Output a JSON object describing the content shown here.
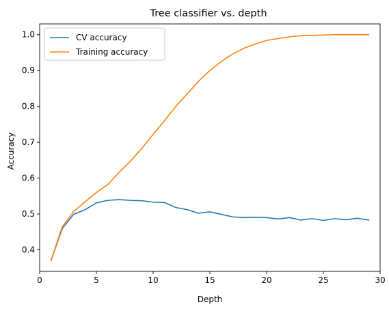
{
  "chart_data": {
    "type": "line",
    "title": "Tree classifier vs. depth",
    "xlabel": "Depth",
    "ylabel": "Accuracy",
    "xlim": [
      0,
      30
    ],
    "ylim": [
      0.34,
      1.03
    ],
    "xticks": [
      0,
      5,
      10,
      15,
      20,
      25,
      30
    ],
    "yticks": [
      0.4,
      0.5,
      0.6,
      0.7,
      0.8,
      0.9,
      1.0
    ],
    "grid": false,
    "legend_position": "top-left",
    "x": [
      1,
      2,
      3,
      4,
      5,
      6,
      7,
      8,
      9,
      10,
      11,
      12,
      13,
      14,
      15,
      16,
      17,
      18,
      19,
      20,
      21,
      22,
      23,
      24,
      25,
      26,
      27,
      28,
      29
    ],
    "series": [
      {
        "name": "CV accuracy",
        "color": "#1f77b4",
        "values": [
          0.37,
          0.46,
          0.499,
          0.512,
          0.531,
          0.538,
          0.54,
          0.538,
          0.537,
          0.533,
          0.532,
          0.518,
          0.512,
          0.502,
          0.506,
          0.499,
          0.492,
          0.49,
          0.491,
          0.49,
          0.486,
          0.49,
          0.483,
          0.487,
          0.482,
          0.487,
          0.484,
          0.488,
          0.483
        ]
      },
      {
        "name": "Training accuracy",
        "color": "#ff7f0e",
        "values": [
          0.37,
          0.465,
          0.507,
          0.534,
          0.56,
          0.582,
          0.616,
          0.647,
          0.683,
          0.722,
          0.76,
          0.8,
          0.835,
          0.87,
          0.9,
          0.925,
          0.946,
          0.962,
          0.974,
          0.984,
          0.989,
          0.994,
          0.997,
          0.998,
          0.999,
          1.0,
          1.0,
          1.0,
          1.0
        ]
      }
    ]
  }
}
